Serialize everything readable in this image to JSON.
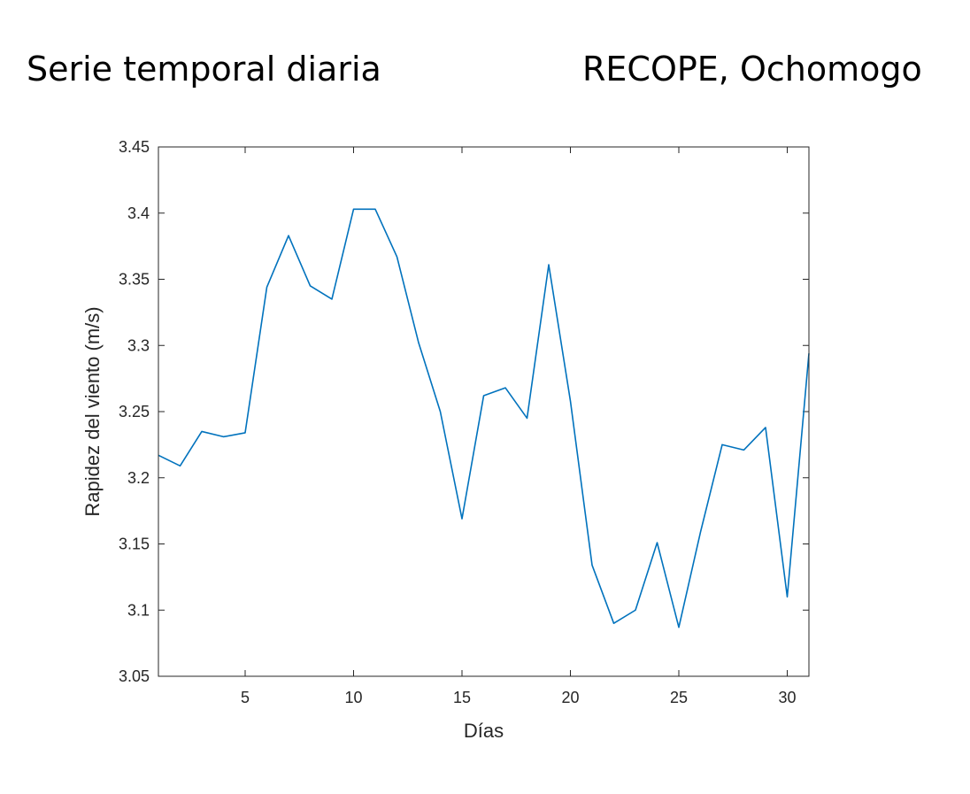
{
  "header": {
    "title_left": "Serie temporal diaria",
    "title_right": "RECOPE, Ochomogo"
  },
  "chart_data": {
    "type": "line",
    "title": "",
    "xlabel": "Días",
    "ylabel": "Rapidez del viento (m/s)",
    "xlim": [
      1,
      31
    ],
    "ylim": [
      3.05,
      3.45
    ],
    "xticks": [
      5,
      10,
      15,
      20,
      25,
      30
    ],
    "yticks": [
      3.05,
      3.1,
      3.15,
      3.2,
      3.25,
      3.3,
      3.35,
      3.4,
      3.45
    ],
    "ytick_labels": [
      "3.05",
      "3.1",
      "3.15",
      "3.2",
      "3.25",
      "3.3",
      "3.35",
      "3.4",
      "3.45"
    ],
    "grid": false,
    "line_color": "#0072BD",
    "x": [
      1,
      2,
      3,
      4,
      5,
      6,
      7,
      8,
      9,
      10,
      11,
      12,
      13,
      14,
      15,
      16,
      17,
      18,
      19,
      20,
      21,
      22,
      23,
      24,
      25,
      26,
      27,
      28,
      29,
      30,
      31
    ],
    "y": [
      3.217,
      3.209,
      3.235,
      3.231,
      3.234,
      3.344,
      3.383,
      3.345,
      3.335,
      3.403,
      3.403,
      3.367,
      3.302,
      3.25,
      3.169,
      3.262,
      3.268,
      3.245,
      3.361,
      3.258,
      3.134,
      3.09,
      3.1,
      3.151,
      3.087,
      3.159,
      3.225,
      3.221,
      3.238,
      3.11,
      3.294
    ]
  }
}
